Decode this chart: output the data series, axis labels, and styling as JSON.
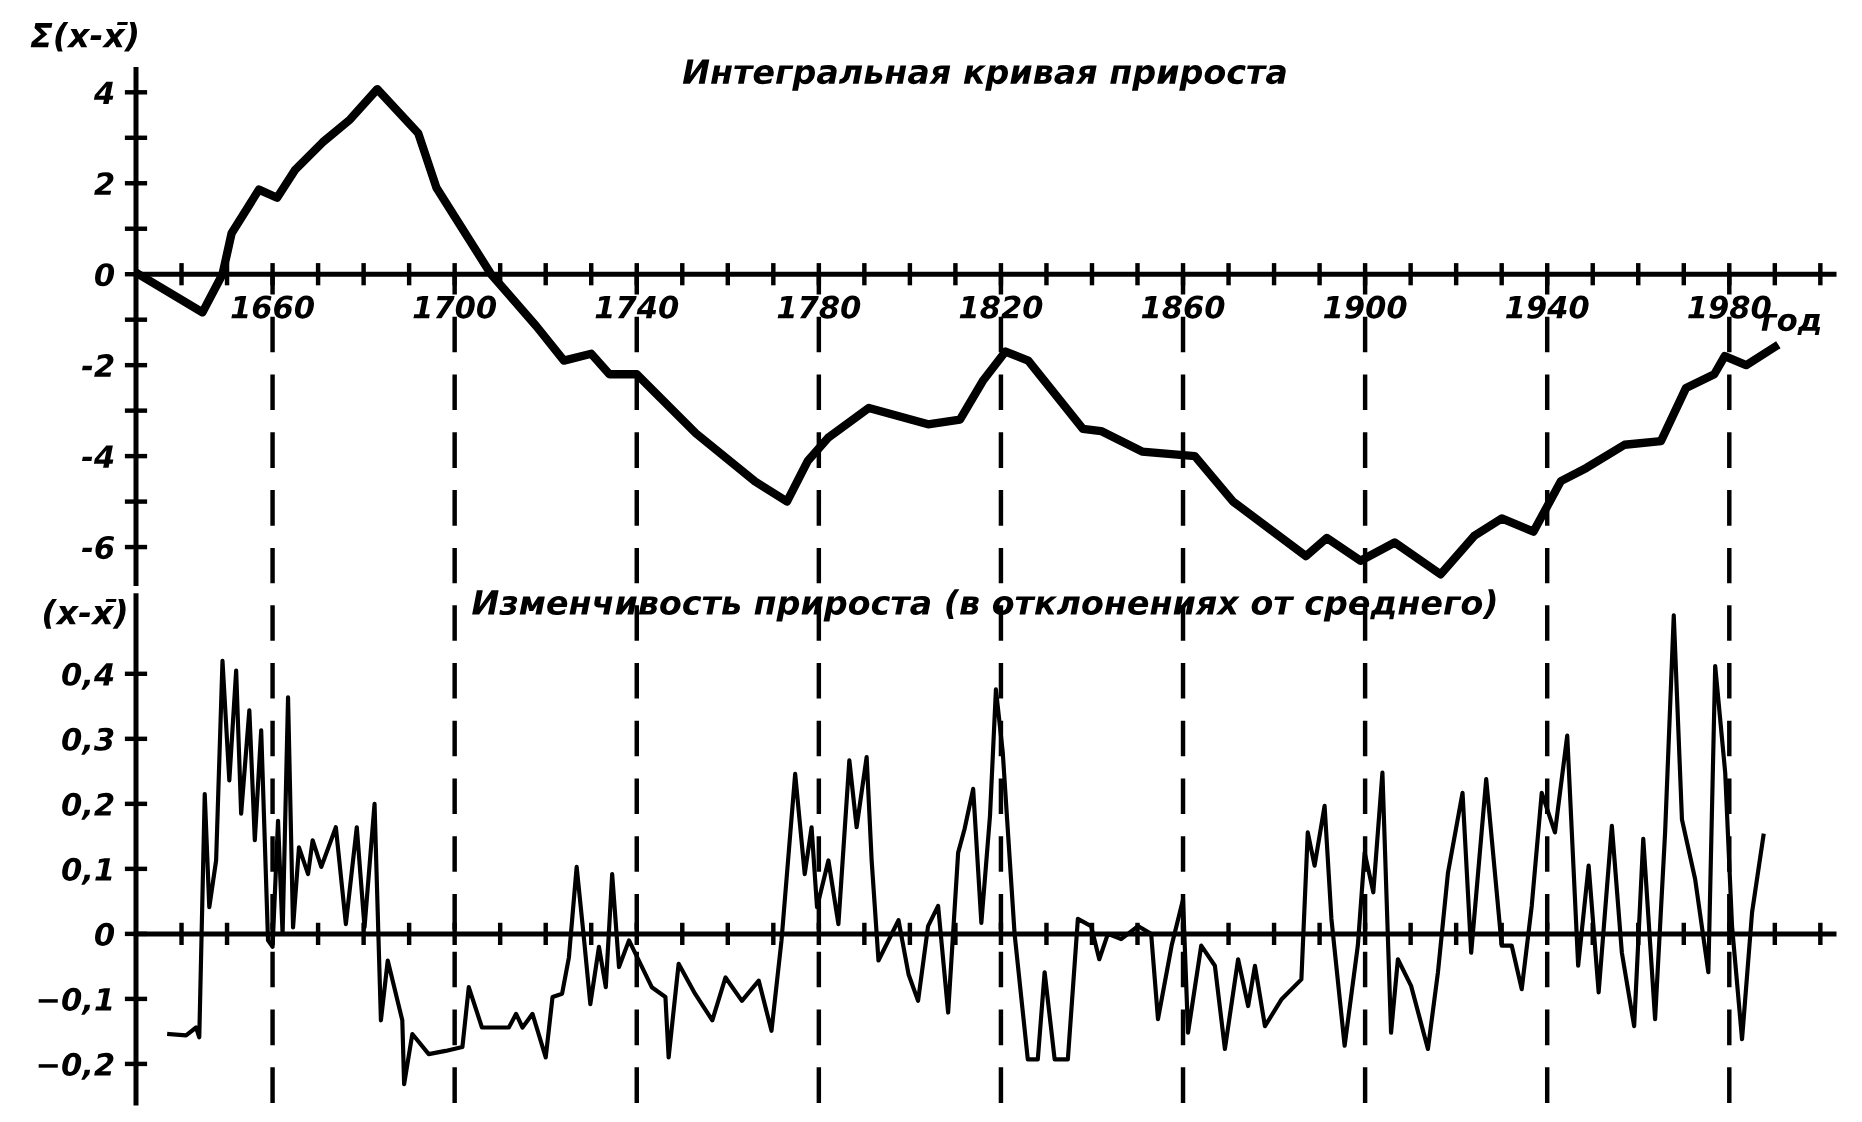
{
  "chart_data": [
    {
      "type": "line",
      "title": "Интегральная кривая прироста",
      "ylabel": "Σ(x-x̄)",
      "xlabel": "год",
      "series": [
        {
          "color": "#000000",
          "x": [
            1630.6,
            1644.6,
            1649,
            1651,
            1657,
            1661,
            1665,
            1671,
            1677,
            1683,
            1692,
            1696,
            1708,
            1718,
            1724,
            1730,
            1734,
            1740,
            1753,
            1766,
            1773,
            1777.6,
            1782,
            1791,
            1804,
            1811,
            1816,
            1821,
            1826,
            1838,
            1842,
            1851,
            1862.6,
            1871,
            1887,
            1891.6,
            1899,
            1906.5,
            1916.6,
            1924,
            1930,
            1937,
            1943,
            1948.6,
            1957,
            1965,
            1970.5,
            1976.7,
            1979,
            1983.7,
            1990
          ],
          "values": [
            0,
            -0.84,
            0,
            0.9,
            1.86,
            1.68,
            2.3,
            2.9,
            3.4,
            4.07,
            3.1,
            1.9,
            0,
            -1.15,
            -1.9,
            -1.75,
            -2.2,
            -2.2,
            -3.5,
            -4.56,
            -5.0,
            -4.1,
            -3.6,
            -2.94,
            -3.3,
            -3.2,
            -2.35,
            -1.7,
            -1.9,
            -3.4,
            -3.45,
            -3.9,
            -4.0,
            -5.0,
            -6.2,
            -5.8,
            -6.3,
            -5.9,
            -6.6,
            -5.75,
            -5.37,
            -5.66,
            -4.55,
            -4.26,
            -3.75,
            -3.67,
            -2.5,
            -2.2,
            -1.8,
            -2.0,
            -1.6
          ]
        }
      ],
      "xlim": [
        1630,
        2003
      ],
      "ylim": [
        -6.8,
        4.5
      ],
      "xticks": [
        {
          "value": 1640,
          "label": null
        },
        {
          "value": 1650,
          "label": null
        },
        1660,
        {
          "value": 1670,
          "label": null
        },
        {
          "value": 1680,
          "label": null
        },
        {
          "value": 1690,
          "label": null
        },
        1700,
        {
          "value": 1710,
          "label": null
        },
        {
          "value": 1720,
          "label": null
        },
        {
          "value": 1730,
          "label": null
        },
        1740,
        {
          "value": 1750,
          "label": null
        },
        {
          "value": 1760,
          "label": null
        },
        {
          "value": 1770,
          "label": null
        },
        1780,
        {
          "value": 1790,
          "label": null
        },
        {
          "value": 1800,
          "label": null
        },
        {
          "value": 1810,
          "label": null
        },
        1820,
        {
          "value": 1830,
          "label": null
        },
        {
          "value": 1840,
          "label": null
        },
        {
          "value": 1850,
          "label": null
        },
        1860,
        {
          "value": 1870,
          "label": null
        },
        {
          "value": 1880,
          "label": null
        },
        {
          "value": 1890,
          "label": null
        },
        1900,
        {
          "value": 1910,
          "label": null
        },
        {
          "value": 1920,
          "label": null
        },
        {
          "value": 1930,
          "label": null
        },
        1940,
        {
          "value": 1950,
          "label": null
        },
        {
          "value": 1960,
          "label": null
        },
        {
          "value": 1970,
          "label": null
        },
        1980,
        {
          "value": 1990,
          "label": null
        },
        {
          "value": 2000,
          "label": null
        }
      ],
      "yticks": [
        -6,
        {
          "value": -5,
          "label": null
        },
        -4,
        {
          "value": -3,
          "label": null
        },
        -2,
        {
          "value": -1,
          "label": null
        },
        0,
        {
          "value": 1,
          "label": null
        },
        2,
        {
          "value": 3,
          "label": null
        },
        4
      ],
      "ref_lines": [
        {
          "axis": "x",
          "value": 1660,
          "line_style": "dashed",
          "color": "#000000"
        },
        {
          "axis": "x",
          "value": 1700,
          "line_style": "dashed",
          "color": "#000000"
        },
        {
          "axis": "x",
          "value": 1740,
          "line_style": "dashed",
          "color": "#000000"
        },
        {
          "axis": "x",
          "value": 1780,
          "line_style": "dashed",
          "color": "#000000"
        },
        {
          "axis": "x",
          "value": 1820,
          "line_style": "dashed",
          "color": "#000000"
        },
        {
          "axis": "x",
          "value": 1860,
          "line_style": "dashed",
          "color": "#000000"
        },
        {
          "axis": "x",
          "value": 1900,
          "line_style": "dashed",
          "color": "#000000"
        },
        {
          "axis": "x",
          "value": 1940,
          "line_style": "dashed",
          "color": "#000000"
        },
        {
          "axis": "x",
          "value": 1980,
          "line_style": "dashed",
          "color": "#000000"
        }
      ]
    },
    {
      "type": "line",
      "title": "Изменчивость прироста (в отклонениях от среднего)",
      "ylabel": "(x-x̄)",
      "tick_labels": "y",
      "series": [
        {
          "color": "#000000",
          "x": [
            1637.3,
            1641,
            1643.2,
            1643.9,
            1645.1,
            1646.1,
            1647.6,
            1649,
            1650.5,
            1652,
            1653.1,
            1654.9,
            1656.1,
            1657.5,
            1659,
            1660,
            1661.2,
            1662.2,
            1663.4,
            1664.5,
            1665.8,
            1667.8,
            1668.8,
            1670.7,
            1673.9,
            1676.1,
            1678.5,
            1680.2,
            1682.4,
            1683.8,
            1685.3,
            1688.5,
            1688.9,
            1690.7,
            1694.3,
            1698,
            1701.7,
            1703.1,
            1706,
            1711.9,
            1713.5,
            1714.9,
            1717.1,
            1720,
            1721.5,
            1723.6,
            1725.1,
            1726.8,
            1728.3,
            1729.8,
            1731.7,
            1733.2,
            1734.6,
            1736.1,
            1738.3,
            1743.3,
            1746.3,
            1747,
            1749.2,
            1752.8,
            1756.6,
            1759.5,
            1763.1,
            1766.8,
            1769.6,
            1771.8,
            1774.8,
            1776.9,
            1778.4,
            1779.6,
            1782.1,
            1784.3,
            1786.7,
            1788.3,
            1790.5,
            1791.6,
            1793.1,
            1797.5,
            1799.7,
            1801.8,
            1804,
            1806.2,
            1808.4,
            1810.6,
            1812,
            1813.9,
            1815.7,
            1817.6,
            1818.9,
            1820.4,
            1823,
            1825.9,
            1828.1,
            1829.6,
            1831.8,
            1834.7,
            1836.9,
            1839.8,
            1841.6,
            1843.5,
            1846.4,
            1850.1,
            1853,
            1854.5,
            1857.5,
            1860,
            1861.1,
            1864,
            1867,
            1869.2,
            1872.1,
            1874.3,
            1875.8,
            1878,
            1881.6,
            1886,
            1887.4,
            1888.9,
            1891.1,
            1892.6,
            1895.5,
            1898.4,
            1899.9,
            1901.8,
            1903.8,
            1905.7,
            1907.2,
            1910.1,
            1913.8,
            1916,
            1918.2,
            1921.4,
            1923.3,
            1926.6,
            1930,
            1932.2,
            1934.4,
            1936.6,
            1938.8,
            1941.7,
            1944.4,
            1946.8,
            1949.1,
            1951.3,
            1954.2,
            1956.4,
            1959.1,
            1961.1,
            1963.7,
            1965.9,
            1967.8,
            1969.6,
            1972.5,
            1975.4,
            1976.9,
            1979.1,
            1980.6,
            1982.8,
            1985,
            1987.5
          ],
          "values": [
            -0.154,
            -0.156,
            -0.144,
            -0.159,
            0.215,
            0.041,
            0.113,
            0.42,
            0.236,
            0.405,
            0.185,
            0.344,
            0.144,
            0.313,
            -0.01,
            -0.02,
            0.174,
            0,
            0.364,
            0.01,
            0.133,
            0.092,
            0.144,
            0.103,
            0.164,
            0.015,
            0.164,
            0.01,
            0.2,
            -0.133,
            -0.041,
            -0.133,
            -0.231,
            -0.154,
            -0.185,
            -0.18,
            -0.174,
            -0.082,
            -0.144,
            -0.144,
            -0.123,
            -0.144,
            -0.123,
            -0.19,
            -0.097,
            -0.092,
            -0.036,
            0.103,
            0,
            -0.108,
            -0.02,
            -0.082,
            0.092,
            -0.051,
            -0.01,
            -0.082,
            -0.097,
            -0.19,
            -0.046,
            -0.092,
            -0.133,
            -0.067,
            -0.103,
            -0.072,
            -0.149,
            -0.01,
            0.246,
            0.092,
            0.164,
            0.041,
            0.113,
            0.015,
            0.267,
            0.164,
            0.272,
            0.113,
            -0.041,
            0.021,
            -0.062,
            -0.103,
            0.012,
            0.043,
            -0.121,
            0.125,
            0.161,
            0.223,
            0.017,
            0.182,
            0.376,
            0.279,
            0,
            -0.193,
            -0.193,
            -0.059,
            -0.193,
            -0.193,
            0.023,
            0.012,
            -0.039,
            0,
            -0.008,
            0.012,
            0,
            -0.131,
            -0.018,
            0.053,
            -0.152,
            -0.018,
            -0.049,
            -0.177,
            -0.039,
            -0.111,
            -0.049,
            -0.142,
            -0.101,
            -0.07,
            0.156,
            0.105,
            0.197,
            0.023,
            -0.172,
            -0.018,
            0.125,
            0.064,
            0.248,
            -0.152,
            -0.039,
            -0.08,
            -0.177,
            -0.059,
            0.094,
            0.217,
            -0.029,
            0.238,
            -0.018,
            -0.018,
            -0.085,
            0.043,
            0.217,
            0.156,
            0.305,
            -0.049,
            0.105,
            -0.09,
            0.166,
            -0.029,
            -0.142,
            0.146,
            -0.131,
            0.156,
            0.49,
            0.176,
            0.084,
            -0.059,
            0.412,
            0.248,
            0.012,
            -0.162,
            0.033,
            0.151
          ]
        }
      ],
      "xlim": [
        1630,
        2003
      ],
      "ylim": [
        -0.26,
        0.52
      ],
      "xticks": [
        {
          "value": 1640,
          "label": null
        },
        {
          "value": 1650,
          "label": null
        },
        {
          "value": 1660,
          "label": null
        },
        {
          "value": 1670,
          "label": null
        },
        {
          "value": 1680,
          "label": null
        },
        {
          "value": 1690,
          "label": null
        },
        {
          "value": 1700,
          "label": null
        },
        {
          "value": 1710,
          "label": null
        },
        {
          "value": 1720,
          "label": null
        },
        {
          "value": 1730,
          "label": null
        },
        {
          "value": 1740,
          "label": null
        },
        {
          "value": 1750,
          "label": null
        },
        {
          "value": 1760,
          "label": null
        },
        {
          "value": 1770,
          "label": null
        },
        {
          "value": 1780,
          "label": null
        },
        {
          "value": 1790,
          "label": null
        },
        {
          "value": 1800,
          "label": null
        },
        {
          "value": 1810,
          "label": null
        },
        {
          "value": 1820,
          "label": null
        },
        {
          "value": 1830,
          "label": null
        },
        {
          "value": 1840,
          "label": null
        },
        {
          "value": 1850,
          "label": null
        },
        {
          "value": 1860,
          "label": null
        },
        {
          "value": 1870,
          "label": null
        },
        {
          "value": 1880,
          "label": null
        },
        {
          "value": 1890,
          "label": null
        },
        {
          "value": 1900,
          "label": null
        },
        {
          "value": 1910,
          "label": null
        },
        {
          "value": 1920,
          "label": null
        },
        {
          "value": 1930,
          "label": null
        },
        {
          "value": 1940,
          "label": null
        },
        {
          "value": 1950,
          "label": null
        },
        {
          "value": 1960,
          "label": null
        },
        {
          "value": 1970,
          "label": null
        },
        {
          "value": 1980,
          "label": null
        },
        {
          "value": 1990,
          "label": null
        },
        {
          "value": 2000,
          "label": null
        }
      ],
      "yticks": [
        {
          "value": -0.2,
          "label": "−0,2"
        },
        {
          "value": -0.1,
          "label": "−0,1"
        },
        0,
        {
          "value": 0.1,
          "label": "0,1"
        },
        {
          "value": 0.2,
          "label": "0,2"
        },
        {
          "value": 0.3,
          "label": "0,3"
        },
        {
          "value": 0.4,
          "label": "0,4"
        }
      ],
      "ref_lines": [
        {
          "axis": "x",
          "value": 1660,
          "line_style": "dashed",
          "color": "#000000"
        },
        {
          "axis": "x",
          "value": 1700,
          "line_style": "dashed",
          "color": "#000000"
        },
        {
          "axis": "x",
          "value": 1740,
          "line_style": "dashed",
          "color": "#000000"
        },
        {
          "axis": "x",
          "value": 1780,
          "line_style": "dashed",
          "color": "#000000"
        },
        {
          "axis": "x",
          "value": 1820,
          "line_style": "dashed",
          "color": "#000000"
        },
        {
          "axis": "x",
          "value": 1860,
          "line_style": "dashed",
          "color": "#000000"
        },
        {
          "axis": "x",
          "value": 1900,
          "line_style": "dashed",
          "color": "#000000"
        },
        {
          "axis": "x",
          "value": 1940,
          "line_style": "dashed",
          "color": "#000000"
        },
        {
          "axis": "x",
          "value": 1980,
          "line_style": "dashed",
          "color": "#000000"
        }
      ]
    }
  ]
}
